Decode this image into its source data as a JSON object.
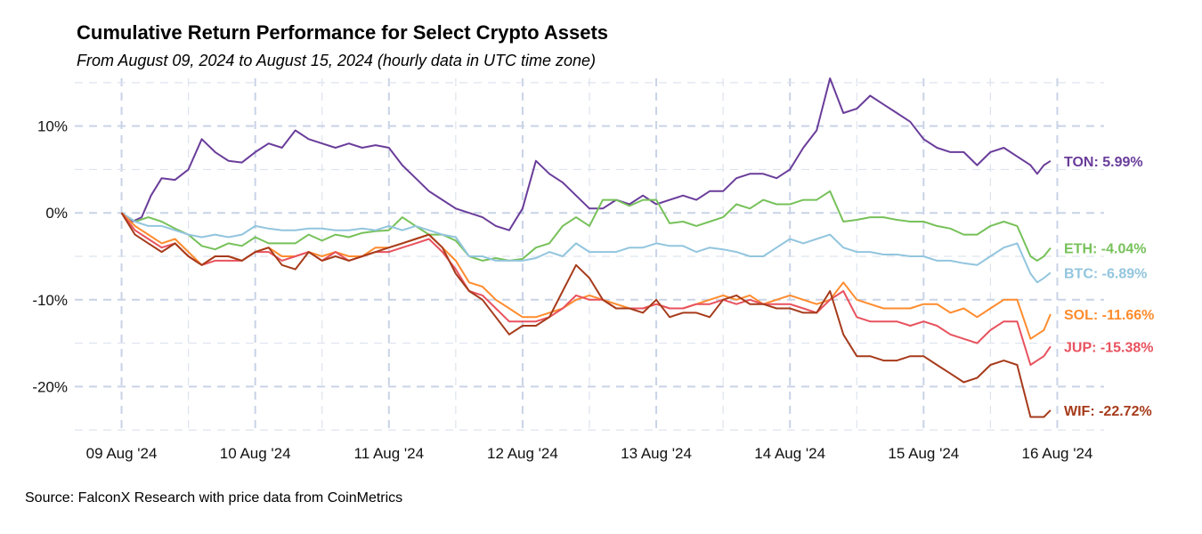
{
  "chart_data": {
    "type": "line",
    "title": "Cumulative Return Performance for Select Crypto Assets",
    "subtitle": "From August 09, 2024 to August 15, 2024 (hourly data in UTC time zone)",
    "caption": "Source: FalconX Research with price data from CoinMetrics",
    "xlabel": "",
    "ylabel": "",
    "x_unit": "days since 09 Aug '24 00:00 UTC",
    "xlim": [
      -0.35,
      7.35
    ],
    "ylim": [
      -25.5,
      15.5
    ],
    "grid": true,
    "x_ticks": [
      {
        "x": 0,
        "label": "09 Aug '24"
      },
      {
        "x": 1,
        "label": "10 Aug '24"
      },
      {
        "x": 2,
        "label": "11 Aug '24"
      },
      {
        "x": 3,
        "label": "12 Aug '24"
      },
      {
        "x": 4,
        "label": "13 Aug '24"
      },
      {
        "x": 5,
        "label": "14 Aug '24"
      },
      {
        "x": 6,
        "label": "15 Aug '24"
      },
      {
        "x": 7,
        "label": "16 Aug '24"
      }
    ],
    "y_ticks": [
      {
        "y": 10,
        "label": "10%"
      },
      {
        "y": 0,
        "label": "0%"
      },
      {
        "y": -10,
        "label": "-10%"
      },
      {
        "y": -20,
        "label": "-20%"
      }
    ],
    "series": [
      {
        "name": "TON",
        "color": "#6a3d9a",
        "end_label": "TON: 5.99%",
        "x": [
          0,
          0.08,
          0.15,
          0.22,
          0.3,
          0.4,
          0.5,
          0.6,
          0.7,
          0.8,
          0.9,
          1.0,
          1.1,
          1.2,
          1.3,
          1.4,
          1.5,
          1.6,
          1.7,
          1.8,
          1.9,
          2.0,
          2.1,
          2.2,
          2.3,
          2.4,
          2.5,
          2.6,
          2.7,
          2.8,
          2.9,
          3.0,
          3.1,
          3.2,
          3.3,
          3.4,
          3.5,
          3.6,
          3.7,
          3.8,
          3.9,
          4.0,
          4.1,
          4.2,
          4.3,
          4.4,
          4.5,
          4.6,
          4.7,
          4.8,
          4.9,
          5.0,
          5.1,
          5.2,
          5.3,
          5.4,
          5.5,
          5.6,
          5.7,
          5.8,
          5.9,
          6.0,
          6.1,
          6.2,
          6.3,
          6.4,
          6.5,
          6.6,
          6.7,
          6.8,
          6.85,
          6.9,
          6.95
        ],
        "y": [
          0,
          -1,
          -0.5,
          2,
          4,
          3.8,
          5,
          8.5,
          7,
          6,
          5.8,
          7,
          8,
          7.5,
          9.5,
          8.5,
          8,
          7.5,
          8,
          7.5,
          7.8,
          7.5,
          5.5,
          4,
          2.5,
          1.5,
          0.5,
          0,
          -0.5,
          -1.5,
          -2,
          0.5,
          6,
          4.5,
          3.5,
          2,
          0.5,
          0.5,
          1.5,
          1,
          2,
          1,
          1.5,
          2,
          1.5,
          2.5,
          2.5,
          4,
          4.5,
          4.5,
          4,
          5,
          7.5,
          9.5,
          15.5,
          11.5,
          12,
          13.5,
          12.5,
          11.5,
          10.5,
          8.5,
          7.5,
          7,
          7,
          5.5,
          7,
          7.5,
          6.5,
          5.5,
          4.5,
          5.5,
          5.99
        ]
      },
      {
        "name": "ETH",
        "color": "#77c15a",
        "end_label": "ETH: -4.04%",
        "x": [
          0,
          0.1,
          0.2,
          0.3,
          0.4,
          0.5,
          0.6,
          0.7,
          0.8,
          0.9,
          1.0,
          1.1,
          1.2,
          1.3,
          1.4,
          1.5,
          1.6,
          1.7,
          1.8,
          1.9,
          2.0,
          2.1,
          2.2,
          2.3,
          2.4,
          2.5,
          2.6,
          2.7,
          2.8,
          2.9,
          3.0,
          3.1,
          3.2,
          3.3,
          3.4,
          3.5,
          3.6,
          3.7,
          3.8,
          3.9,
          4.0,
          4.1,
          4.2,
          4.3,
          4.4,
          4.5,
          4.6,
          4.7,
          4.8,
          4.9,
          5.0,
          5.1,
          5.2,
          5.3,
          5.4,
          5.5,
          5.6,
          5.7,
          5.8,
          5.9,
          6.0,
          6.1,
          6.2,
          6.3,
          6.4,
          6.5,
          6.6,
          6.7,
          6.8,
          6.85,
          6.9,
          6.95
        ],
        "y": [
          0,
          -1,
          -0.5,
          -1,
          -1.8,
          -2.5,
          -3.8,
          -4.2,
          -3.5,
          -3.8,
          -2.8,
          -3.5,
          -3.5,
          -3.5,
          -2.5,
          -3.2,
          -2.5,
          -2.8,
          -2.3,
          -2.1,
          -2,
          -0.5,
          -1.5,
          -2.5,
          -2.5,
          -3.2,
          -5,
          -5.5,
          -5.2,
          -5.5,
          -5.3,
          -4,
          -3.5,
          -1.5,
          -0.5,
          -1.5,
          1.5,
          1.5,
          0.8,
          1.5,
          1.5,
          -1.2,
          -1,
          -1.5,
          -1,
          -0.5,
          1,
          0.5,
          1.5,
          1,
          1,
          1.5,
          1.5,
          2.5,
          -1,
          -0.8,
          -0.5,
          -0.5,
          -0.8,
          -1,
          -1,
          -1.5,
          -1.8,
          -2.5,
          -2.5,
          -1.5,
          -1,
          -1.5,
          -5,
          -5.5,
          -5,
          -4.04
        ]
      },
      {
        "name": "BTC",
        "color": "#92c5de",
        "end_label": "BTC: -6.89%",
        "x": [
          0,
          0.1,
          0.2,
          0.3,
          0.4,
          0.5,
          0.6,
          0.7,
          0.8,
          0.9,
          1.0,
          1.1,
          1.2,
          1.3,
          1.4,
          1.5,
          1.6,
          1.7,
          1.8,
          1.9,
          2.0,
          2.1,
          2.2,
          2.3,
          2.4,
          2.5,
          2.6,
          2.7,
          2.8,
          2.9,
          3.0,
          3.1,
          3.2,
          3.3,
          3.4,
          3.5,
          3.6,
          3.7,
          3.8,
          3.9,
          4.0,
          4.1,
          4.2,
          4.3,
          4.4,
          4.5,
          4.6,
          4.7,
          4.8,
          4.9,
          5.0,
          5.1,
          5.2,
          5.3,
          5.4,
          5.5,
          5.6,
          5.7,
          5.8,
          5.9,
          6.0,
          6.1,
          6.2,
          6.3,
          6.4,
          6.5,
          6.6,
          6.7,
          6.8,
          6.85,
          6.9,
          6.95
        ],
        "y": [
          0,
          -1,
          -1.5,
          -1.5,
          -2,
          -2.5,
          -2.8,
          -2.5,
          -2.8,
          -2.5,
          -1.5,
          -1.8,
          -2,
          -2,
          -1.8,
          -1.8,
          -2,
          -2,
          -1.8,
          -2,
          -1.5,
          -2,
          -1.5,
          -2,
          -2.5,
          -2.8,
          -5,
          -5,
          -5.5,
          -5.5,
          -5.5,
          -5.2,
          -4.5,
          -5,
          -3.5,
          -4.5,
          -4.5,
          -4.5,
          -4,
          -4,
          -3.5,
          -3.8,
          -3.8,
          -4.5,
          -4,
          -4.2,
          -4.5,
          -5,
          -5,
          -4,
          -3,
          -3.5,
          -3,
          -2.5,
          -4,
          -4.5,
          -4.5,
          -4.8,
          -4.8,
          -5,
          -5,
          -5.5,
          -5.5,
          -5.8,
          -6,
          -5,
          -4,
          -3.5,
          -7,
          -8,
          -7.5,
          -6.89
        ]
      },
      {
        "name": "SOL",
        "color": "#ff8c2e",
        "end_label": "SOL: -11.66%",
        "x": [
          0,
          0.1,
          0.2,
          0.3,
          0.4,
          0.5,
          0.6,
          0.7,
          0.8,
          0.9,
          1.0,
          1.1,
          1.2,
          1.3,
          1.4,
          1.5,
          1.6,
          1.7,
          1.8,
          1.9,
          2.0,
          2.1,
          2.2,
          2.3,
          2.4,
          2.5,
          2.6,
          2.7,
          2.8,
          2.9,
          3.0,
          3.1,
          3.2,
          3.3,
          3.4,
          3.5,
          3.6,
          3.7,
          3.8,
          3.9,
          4.0,
          4.1,
          4.2,
          4.3,
          4.4,
          4.5,
          4.6,
          4.7,
          4.8,
          4.9,
          5.0,
          5.1,
          5.2,
          5.3,
          5.4,
          5.5,
          5.6,
          5.7,
          5.8,
          5.9,
          6.0,
          6.1,
          6.2,
          6.3,
          6.4,
          6.5,
          6.6,
          6.7,
          6.8,
          6.85,
          6.9,
          6.95
        ],
        "y": [
          0,
          -1.5,
          -2.5,
          -3.5,
          -3,
          -4.5,
          -6,
          -5,
          -5,
          -5.5,
          -4.5,
          -4,
          -5,
          -5,
          -4.5,
          -5,
          -4.5,
          -5,
          -5,
          -4,
          -4,
          -3.5,
          -3,
          -2.5,
          -4,
          -5.5,
          -8,
          -8.5,
          -10,
          -11,
          -12,
          -12,
          -11.5,
          -11,
          -10,
          -9.5,
          -10,
          -10.5,
          -11,
          -11,
          -10.5,
          -11,
          -11,
          -10.5,
          -10,
          -9.5,
          -10,
          -9.5,
          -10.5,
          -10,
          -9.5,
          -10,
          -10.5,
          -10,
          -8,
          -10,
          -10.5,
          -11,
          -11,
          -11,
          -10.5,
          -10.5,
          -11.5,
          -11,
          -12,
          -11,
          -10,
          -10,
          -14.5,
          -14,
          -13.5,
          -11.66
        ]
      },
      {
        "name": "JUP",
        "color": "#e8525e",
        "end_label": "JUP: -15.38%",
        "x": [
          0,
          0.1,
          0.2,
          0.3,
          0.4,
          0.5,
          0.6,
          0.7,
          0.8,
          0.9,
          1.0,
          1.1,
          1.2,
          1.3,
          1.4,
          1.5,
          1.6,
          1.7,
          1.8,
          1.9,
          2.0,
          2.1,
          2.2,
          2.3,
          2.4,
          2.5,
          2.6,
          2.7,
          2.8,
          2.9,
          3.0,
          3.1,
          3.2,
          3.3,
          3.4,
          3.5,
          3.6,
          3.7,
          3.8,
          3.9,
          4.0,
          4.1,
          4.2,
          4.3,
          4.4,
          4.5,
          4.6,
          4.7,
          4.8,
          4.9,
          5.0,
          5.1,
          5.2,
          5.3,
          5.4,
          5.5,
          5.6,
          5.7,
          5.8,
          5.9,
          6.0,
          6.1,
          6.2,
          6.3,
          6.4,
          6.5,
          6.6,
          6.7,
          6.8,
          6.85,
          6.9,
          6.95
        ],
        "y": [
          0,
          -2,
          -3,
          -4,
          -3.5,
          -5,
          -6,
          -5.5,
          -5.5,
          -5.5,
          -4.5,
          -4.5,
          -5.5,
          -5,
          -4.5,
          -5.5,
          -4.5,
          -5.5,
          -5,
          -4.5,
          -4.5,
          -4,
          -3.5,
          -3,
          -4.5,
          -6.5,
          -9,
          -9.5,
          -11,
          -12.5,
          -12.5,
          -12.5,
          -12,
          -11,
          -9.5,
          -10,
          -10,
          -11,
          -11,
          -11,
          -10.5,
          -11,
          -11,
          -10.5,
          -10.5,
          -10,
          -10.5,
          -10,
          -10.5,
          -10.5,
          -10.5,
          -11,
          -11.5,
          -10,
          -9,
          -12,
          -12.5,
          -12.5,
          -12.5,
          -13,
          -12.5,
          -13,
          -14,
          -14.5,
          -15,
          -13.5,
          -12.5,
          -12.5,
          -17.5,
          -17,
          -16.5,
          -15.38
        ]
      },
      {
        "name": "WIF",
        "color": "#a63b1b",
        "end_label": "WIF: -22.72%",
        "x": [
          0,
          0.1,
          0.2,
          0.3,
          0.4,
          0.5,
          0.6,
          0.7,
          0.8,
          0.9,
          1.0,
          1.1,
          1.2,
          1.3,
          1.4,
          1.5,
          1.6,
          1.7,
          1.8,
          1.9,
          2.0,
          2.1,
          2.2,
          2.3,
          2.4,
          2.5,
          2.6,
          2.7,
          2.8,
          2.9,
          3.0,
          3.1,
          3.2,
          3.3,
          3.4,
          3.5,
          3.6,
          3.7,
          3.8,
          3.9,
          4.0,
          4.1,
          4.2,
          4.3,
          4.4,
          4.5,
          4.6,
          4.7,
          4.8,
          4.9,
          5.0,
          5.1,
          5.2,
          5.3,
          5.4,
          5.5,
          5.6,
          5.7,
          5.8,
          5.9,
          6.0,
          6.1,
          6.2,
          6.3,
          6.4,
          6.5,
          6.6,
          6.7,
          6.8,
          6.85,
          6.9,
          6.95
        ],
        "y": [
          0,
          -2.5,
          -3.5,
          -4.5,
          -3.5,
          -5,
          -6,
          -5,
          -5,
          -5.5,
          -4.5,
          -4,
          -6,
          -6.5,
          -4.5,
          -5.5,
          -5,
          -5.5,
          -5,
          -4.5,
          -4,
          -3.5,
          -3,
          -2.5,
          -4,
          -7,
          -9,
          -10,
          -12,
          -14,
          -13,
          -13,
          -12,
          -9,
          -6,
          -7.5,
          -10,
          -11,
          -11,
          -11.5,
          -10,
          -12,
          -11.5,
          -11.5,
          -12,
          -10,
          -9.5,
          -10.5,
          -10.5,
          -11,
          -11,
          -11.5,
          -11.5,
          -9,
          -14,
          -16.5,
          -16.5,
          -17,
          -17,
          -16.5,
          -16.5,
          -17.5,
          -18.5,
          -19.5,
          -19,
          -17.5,
          -17,
          -17.5,
          -23.5,
          -23.5,
          -23.5,
          -22.72
        ]
      }
    ]
  }
}
